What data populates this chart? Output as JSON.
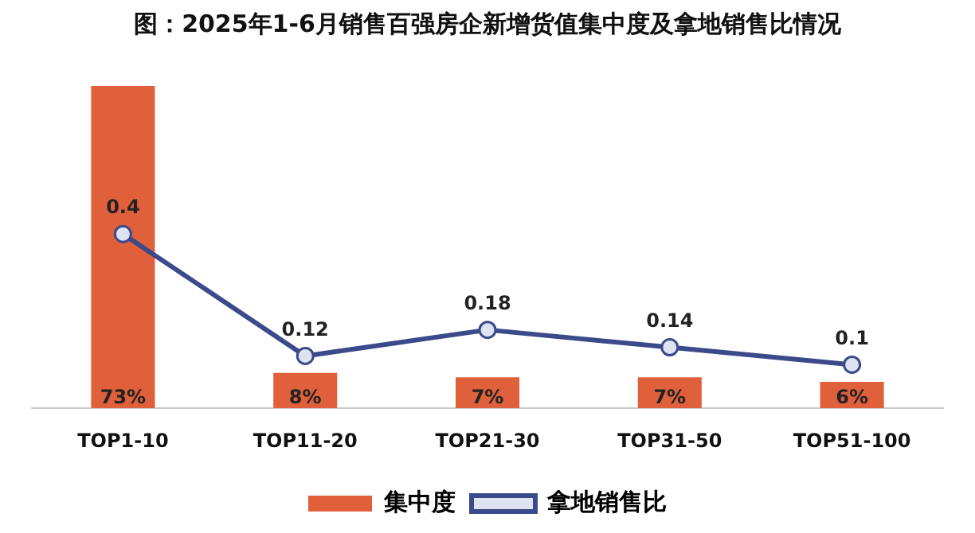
{
  "chart_data": {
    "type": "bar",
    "title": "图：2025年1-6月销售百强房企新增货值集中度及拿地销售比情况",
    "categories": [
      "TOP1-10",
      "TOP11-20",
      "TOP21-30",
      "TOP31-50",
      "TOP51-100"
    ],
    "series": [
      {
        "name": "集中度",
        "color": "#e0603c",
        "values": [
          73,
          8,
          7,
          7,
          6
        ],
        "value_labels": [
          "73%",
          "8%",
          "7%",
          "7%",
          "6%"
        ]
      },
      {
        "name": "拿地销售比",
        "type": "line",
        "axis": "y2",
        "color": "#3b4a8a",
        "marker": "circle",
        "values": [
          0.4,
          0.12,
          0.18,
          0.14,
          0.1
        ],
        "value_labels": [
          "0.4",
          "0.12",
          "0.18",
          "0.14",
          "0.1"
        ]
      }
    ],
    "tick_labels": "x",
    "grid": false,
    "legend": "bottom"
  }
}
